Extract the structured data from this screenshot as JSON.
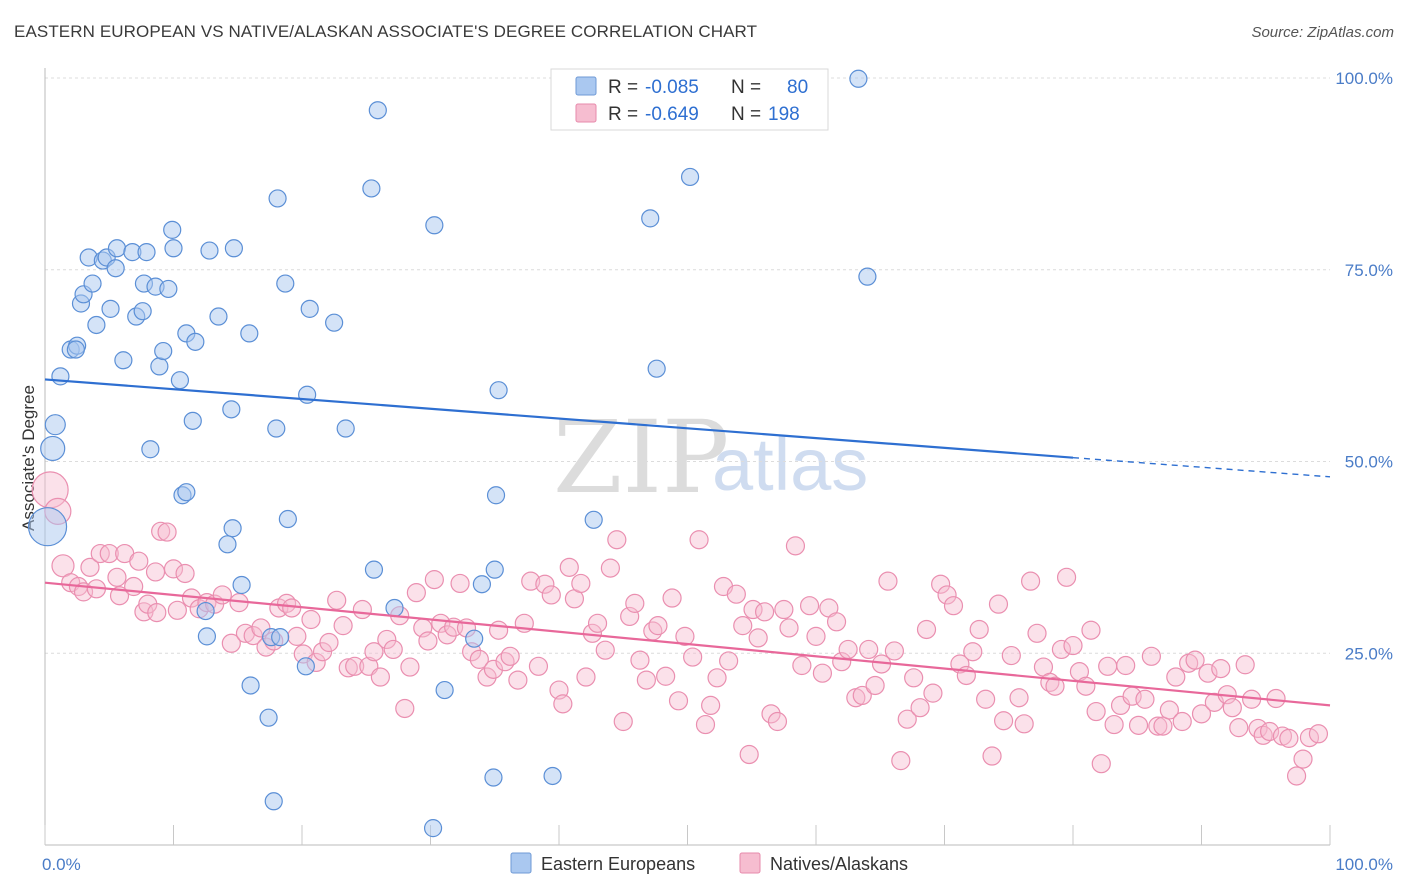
{
  "title": "EASTERN EUROPEAN VS NATIVE/ALASKAN ASSOCIATE'S DEGREE CORRELATION CHART",
  "source": "Source: ZipAtlas.com",
  "watermark": {
    "zip": "ZIP",
    "atlas": "atlas"
  },
  "colors": {
    "blue": "#2e6fd1",
    "blue_fill": "#aac8f0",
    "pink": "#e8689a",
    "pink_fill": "#f6bdd0",
    "tick": "#4a7cc7"
  },
  "legend": {
    "rows": [
      {
        "r_label": "R =",
        "r_value": "-0.085",
        "n_label": "N =",
        "n_value": "80"
      },
      {
        "r_label": "R =",
        "r_value": "-0.649",
        "n_label": "N =",
        "n_value": "198"
      }
    ]
  },
  "bottom_legend": [
    "Eastern Europeans",
    "Natives/Alaskans"
  ],
  "chart_data": {
    "type": "scatter",
    "xlabel": "",
    "ylabel": "Associate's Degree",
    "xlim": [
      0,
      100
    ],
    "ylim": [
      0,
      100
    ],
    "x_tick_labels": [
      "0.0%",
      "100.0%"
    ],
    "y_tick_labels": [
      "25.0%",
      "50.0%",
      "75.0%",
      "100.0%"
    ],
    "y_tick_values": [
      25,
      50,
      75,
      100
    ],
    "grid": true,
    "series": [
      {
        "name": "Eastern Europeans",
        "trend": {
          "x0": 0,
          "y0": 60.7,
          "x1": 80,
          "y1": 50.5,
          "dashed_to_x": 100,
          "dashed_to_y": 48.0
        },
        "points": [
          [
            0.8,
            54.8
          ],
          [
            0.6,
            51.7
          ],
          [
            0.2,
            41.5
          ],
          [
            1.2,
            61.1
          ],
          [
            2.0,
            64.6
          ],
          [
            2.5,
            65.1
          ],
          [
            2.4,
            64.6
          ],
          [
            2.8,
            70.6
          ],
          [
            3.0,
            71.8
          ],
          [
            3.7,
            73.2
          ],
          [
            4.0,
            67.8
          ],
          [
            3.4,
            76.6
          ],
          [
            4.5,
            76.2
          ],
          [
            4.8,
            76.6
          ],
          [
            5.1,
            69.9
          ],
          [
            5.6,
            77.8
          ],
          [
            5.5,
            75.2
          ],
          [
            6.1,
            63.2
          ],
          [
            6.8,
            77.3
          ],
          [
            7.1,
            68.9
          ],
          [
            7.6,
            69.6
          ],
          [
            7.9,
            77.3
          ],
          [
            7.7,
            73.2
          ],
          [
            8.6,
            72.8
          ],
          [
            8.9,
            62.4
          ],
          [
            9.2,
            64.4
          ],
          [
            9.6,
            72.5
          ],
          [
            9.9,
            80.2
          ],
          [
            10.0,
            77.8
          ],
          [
            10.5,
            60.6
          ],
          [
            11.0,
            66.7
          ],
          [
            11.7,
            65.6
          ],
          [
            12.8,
            77.5
          ],
          [
            13.5,
            68.9
          ],
          [
            14.7,
            77.8
          ],
          [
            15.9,
            66.7
          ],
          [
            18.1,
            84.3
          ],
          [
            18.7,
            73.2
          ],
          [
            20.6,
            69.9
          ],
          [
            20.4,
            58.7
          ],
          [
            22.5,
            68.1
          ],
          [
            25.4,
            85.6
          ],
          [
            25.9,
            95.8
          ],
          [
            30.3,
            80.8
          ],
          [
            35.1,
            45.6
          ],
          [
            35.3,
            59.3
          ],
          [
            47.1,
            81.7
          ],
          [
            47.6,
            62.1
          ],
          [
            50.2,
            87.1
          ],
          [
            63.3,
            99.9
          ],
          [
            64.0,
            74.1
          ],
          [
            11.5,
            55.3
          ],
          [
            8.2,
            51.6
          ],
          [
            10.7,
            45.6
          ],
          [
            11.0,
            46.0
          ],
          [
            14.6,
            41.3
          ],
          [
            14.2,
            39.2
          ],
          [
            15.3,
            33.9
          ],
          [
            12.5,
            30.5
          ],
          [
            16.0,
            20.8
          ],
          [
            17.4,
            16.6
          ],
          [
            17.6,
            27.1
          ],
          [
            17.8,
            5.7
          ],
          [
            18.3,
            27.1
          ],
          [
            18.9,
            42.5
          ],
          [
            20.3,
            23.3
          ],
          [
            25.6,
            35.9
          ],
          [
            27.2,
            30.9
          ],
          [
            30.2,
            2.2
          ],
          [
            31.1,
            20.2
          ],
          [
            33.4,
            26.9
          ],
          [
            34.0,
            34.0
          ],
          [
            35.0,
            35.9
          ],
          [
            34.9,
            8.8
          ],
          [
            39.5,
            9.0
          ],
          [
            42.7,
            42.4
          ],
          [
            14.5,
            56.8
          ],
          [
            18.0,
            54.3
          ],
          [
            23.4,
            54.3
          ],
          [
            12.6,
            27.2
          ]
        ]
      },
      {
        "name": "Natives/Alaskans",
        "trend": {
          "x0": 0,
          "y0": 34.2,
          "x1": 100,
          "y1": 18.2
        },
        "points": [
          [
            0.4,
            46.3
          ],
          [
            1.0,
            43.5
          ],
          [
            1.4,
            36.4
          ],
          [
            2.0,
            34.2
          ],
          [
            2.6,
            33.7
          ],
          [
            3.0,
            33.0
          ],
          [
            3.5,
            36.2
          ],
          [
            4.0,
            33.4
          ],
          [
            4.3,
            38.0
          ],
          [
            5.0,
            38.0
          ],
          [
            5.6,
            34.9
          ],
          [
            5.8,
            32.5
          ],
          [
            6.2,
            38.0
          ],
          [
            6.9,
            33.7
          ],
          [
            7.3,
            37.0
          ],
          [
            7.7,
            30.4
          ],
          [
            8.0,
            31.4
          ],
          [
            8.6,
            35.6
          ],
          [
            9.0,
            40.9
          ],
          [
            9.5,
            40.8
          ],
          [
            10.0,
            36.0
          ],
          [
            10.3,
            30.6
          ],
          [
            10.9,
            35.4
          ],
          [
            11.4,
            32.2
          ],
          [
            12.0,
            30.8
          ],
          [
            12.6,
            31.6
          ],
          [
            13.2,
            31.4
          ],
          [
            13.8,
            32.6
          ],
          [
            14.5,
            26.3
          ],
          [
            15.1,
            31.6
          ],
          [
            15.6,
            27.6
          ],
          [
            16.2,
            27.3
          ],
          [
            16.8,
            28.3
          ],
          [
            17.2,
            25.8
          ],
          [
            17.8,
            26.6
          ],
          [
            18.2,
            30.9
          ],
          [
            18.8,
            31.5
          ],
          [
            19.2,
            30.9
          ],
          [
            19.6,
            27.2
          ],
          [
            20.1,
            24.9
          ],
          [
            20.7,
            29.4
          ],
          [
            21.1,
            23.8
          ],
          [
            21.6,
            25.2
          ],
          [
            22.1,
            26.4
          ],
          [
            22.7,
            31.9
          ],
          [
            23.2,
            28.6
          ],
          [
            23.6,
            23.1
          ],
          [
            24.1,
            23.3
          ],
          [
            24.7,
            30.7
          ],
          [
            25.2,
            23.3
          ],
          [
            25.6,
            25.2
          ],
          [
            26.1,
            21.9
          ],
          [
            26.6,
            26.8
          ],
          [
            27.1,
            25.5
          ],
          [
            27.6,
            29.9
          ],
          [
            28.0,
            17.8
          ],
          [
            28.4,
            23.2
          ],
          [
            28.9,
            32.9
          ],
          [
            29.4,
            28.3
          ],
          [
            29.8,
            26.6
          ],
          [
            30.3,
            34.6
          ],
          [
            30.8,
            28.9
          ],
          [
            31.3,
            27.4
          ],
          [
            31.8,
            28.4
          ],
          [
            32.3,
            34.1
          ],
          [
            32.8,
            28.3
          ],
          [
            33.2,
            25.2
          ],
          [
            33.8,
            24.2
          ],
          [
            34.4,
            21.9
          ],
          [
            34.9,
            22.9
          ],
          [
            35.3,
            28.0
          ],
          [
            35.8,
            23.9
          ],
          [
            36.2,
            24.6
          ],
          [
            36.8,
            21.5
          ],
          [
            37.3,
            28.9
          ],
          [
            37.8,
            34.4
          ],
          [
            38.4,
            23.3
          ],
          [
            38.9,
            34.0
          ],
          [
            39.4,
            32.6
          ],
          [
            40.0,
            20.2
          ],
          [
            40.3,
            18.4
          ],
          [
            40.8,
            36.2
          ],
          [
            41.2,
            32.1
          ],
          [
            41.7,
            34.1
          ],
          [
            42.1,
            21.9
          ],
          [
            42.6,
            27.6
          ],
          [
            43.0,
            28.9
          ],
          [
            43.6,
            25.4
          ],
          [
            44.0,
            36.1
          ],
          [
            44.5,
            39.8
          ],
          [
            45.0,
            16.1
          ],
          [
            45.5,
            29.8
          ],
          [
            45.9,
            31.5
          ],
          [
            46.3,
            24.1
          ],
          [
            46.8,
            21.5
          ],
          [
            47.3,
            27.9
          ],
          [
            47.7,
            28.6
          ],
          [
            48.3,
            22.0
          ],
          [
            48.8,
            32.2
          ],
          [
            49.3,
            18.8
          ],
          [
            49.8,
            27.2
          ],
          [
            50.4,
            24.5
          ],
          [
            50.9,
            39.8
          ],
          [
            51.4,
            15.7
          ],
          [
            51.8,
            18.2
          ],
          [
            52.3,
            21.8
          ],
          [
            52.8,
            33.7
          ],
          [
            53.2,
            24.0
          ],
          [
            53.8,
            32.7
          ],
          [
            54.3,
            28.6
          ],
          [
            54.8,
            11.8
          ],
          [
            55.1,
            30.7
          ],
          [
            55.5,
            27.0
          ],
          [
            56.0,
            30.4
          ],
          [
            56.5,
            17.1
          ],
          [
            57.0,
            16.1
          ],
          [
            57.5,
            30.7
          ],
          [
            57.9,
            28.3
          ],
          [
            58.4,
            39.0
          ],
          [
            58.9,
            23.4
          ],
          [
            59.5,
            31.2
          ],
          [
            60.0,
            27.2
          ],
          [
            60.5,
            22.4
          ],
          [
            61.0,
            30.9
          ],
          [
            61.6,
            29.1
          ],
          [
            62.0,
            23.9
          ],
          [
            62.5,
            25.5
          ],
          [
            63.1,
            19.2
          ],
          [
            63.6,
            19.5
          ],
          [
            64.1,
            25.5
          ],
          [
            64.6,
            20.8
          ],
          [
            65.1,
            23.6
          ],
          [
            65.6,
            34.4
          ],
          [
            66.1,
            25.3
          ],
          [
            66.6,
            11.0
          ],
          [
            67.1,
            16.4
          ],
          [
            67.6,
            21.8
          ],
          [
            68.1,
            17.9
          ],
          [
            68.6,
            28.1
          ],
          [
            69.1,
            19.8
          ],
          [
            69.7,
            34.0
          ],
          [
            70.2,
            32.6
          ],
          [
            70.7,
            31.2
          ],
          [
            71.2,
            23.6
          ],
          [
            71.7,
            22.1
          ],
          [
            72.2,
            25.2
          ],
          [
            72.7,
            28.1
          ],
          [
            73.2,
            19.0
          ],
          [
            73.7,
            11.6
          ],
          [
            74.2,
            31.4
          ],
          [
            74.6,
            16.2
          ],
          [
            75.2,
            24.7
          ],
          [
            75.8,
            19.2
          ],
          [
            76.2,
            15.8
          ],
          [
            76.7,
            34.4
          ],
          [
            77.2,
            27.6
          ],
          [
            77.7,
            23.2
          ],
          [
            78.2,
            21.2
          ],
          [
            78.6,
            20.7
          ],
          [
            79.1,
            25.5
          ],
          [
            79.5,
            34.9
          ],
          [
            80.0,
            26.0
          ],
          [
            80.5,
            22.6
          ],
          [
            81.0,
            20.7
          ],
          [
            81.4,
            28.0
          ],
          [
            81.8,
            17.4
          ],
          [
            82.2,
            10.6
          ],
          [
            82.7,
            23.3
          ],
          [
            83.2,
            15.7
          ],
          [
            83.7,
            18.2
          ],
          [
            84.1,
            23.4
          ],
          [
            84.6,
            19.4
          ],
          [
            85.1,
            15.6
          ],
          [
            85.6,
            19.0
          ],
          [
            86.1,
            24.6
          ],
          [
            86.6,
            15.5
          ],
          [
            87.0,
            15.5
          ],
          [
            87.5,
            17.6
          ],
          [
            88.0,
            21.9
          ],
          [
            88.5,
            16.1
          ],
          [
            89.0,
            23.7
          ],
          [
            89.5,
            24.1
          ],
          [
            90.0,
            17.1
          ],
          [
            90.5,
            22.4
          ],
          [
            91.0,
            18.6
          ],
          [
            91.5,
            23.0
          ],
          [
            92.0,
            19.6
          ],
          [
            92.4,
            17.9
          ],
          [
            92.9,
            15.3
          ],
          [
            93.4,
            23.5
          ],
          [
            93.9,
            19.0
          ],
          [
            94.4,
            15.2
          ],
          [
            94.8,
            14.3
          ],
          [
            95.3,
            14.8
          ],
          [
            95.8,
            19.1
          ],
          [
            96.3,
            14.2
          ],
          [
            96.8,
            13.9
          ],
          [
            97.4,
            9.0
          ],
          [
            97.9,
            11.2
          ],
          [
            98.4,
            14.0
          ],
          [
            99.1,
            14.5
          ],
          [
            8.7,
            30.3
          ]
        ]
      }
    ]
  }
}
